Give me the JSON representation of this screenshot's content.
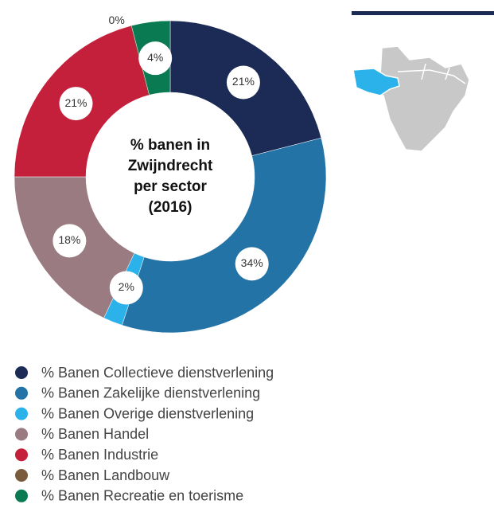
{
  "chart_data": {
    "type": "donut",
    "title_lines": [
      "% banen in",
      "Zwijndrecht",
      "per sector",
      "(2016)"
    ],
    "categories": [
      "% Banen Collectieve dienstverlening",
      "% Banen Zakelijke dienstverlening",
      "% Banen Overige dienstverlening",
      "% Banen Handel",
      "% Banen Industrie",
      "% Banen Landbouw",
      "% Banen Recreatie en toerisme"
    ],
    "values": [
      21,
      34,
      2,
      18,
      21,
      0,
      4
    ],
    "value_labels": [
      "21%",
      "34%",
      "2%",
      "18%",
      "21%",
      "0%",
      "4%"
    ],
    "colors": [
      "#1b2b55",
      "#2473a6",
      "#2cb2ea",
      "#9b7b82",
      "#c41f3b",
      "#7a5b3c",
      "#0a7a52"
    ]
  }
}
